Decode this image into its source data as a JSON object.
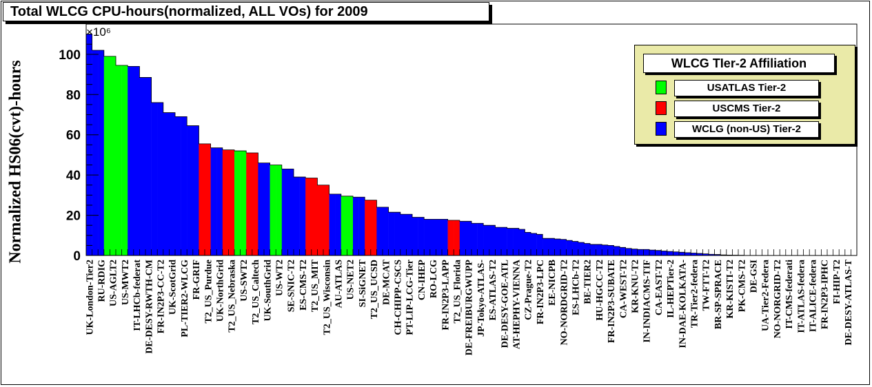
{
  "chart_data": {
    "type": "bar",
    "title": "Total WLCG CPU-hours(normalized, ALL VOs) for 2009",
    "ylabel": "Normalized HS06(cvt)-hours",
    "y_multiplier": "×10⁶",
    "ylim": [
      0,
      115
    ],
    "yticks": [
      0,
      20,
      40,
      60,
      80,
      100
    ],
    "grid": false,
    "legend": {
      "title": "WLCG TIer-2 Affiliation",
      "placement": "top-right",
      "entries": [
        {
          "name": "USATLAS Tier-2",
          "color": "#00ff00"
        },
        {
          "name": "USCMS Tier-2",
          "color": "#ff0000"
        },
        {
          "name": "WCLG (non-US) Tier-2",
          "color": "#0000ff"
        }
      ]
    },
    "colors": {
      "atlas": "#00ff00",
      "cms": "#ff0000",
      "other": "#0000ff"
    },
    "label_every": 2,
    "bars": [
      {
        "name": "UK-London-Tier2",
        "value": 110,
        "group": "other"
      },
      {
        "name": "",
        "value": 102,
        "group": "other"
      },
      {
        "name": "RU-RDIG",
        "value": 102,
        "group": "other"
      },
      {
        "name": "",
        "value": 99,
        "group": "atlas"
      },
      {
        "name": "US-AGLT2",
        "value": 99,
        "group": "atlas"
      },
      {
        "name": "",
        "value": 94.5,
        "group": "atlas"
      },
      {
        "name": "US-MWT2",
        "value": 94.5,
        "group": "atlas"
      },
      {
        "name": "",
        "value": 94,
        "group": "other"
      },
      {
        "name": "IT-LHCb-federat",
        "value": 94,
        "group": "other"
      },
      {
        "name": "",
        "value": 88.5,
        "group": "other"
      },
      {
        "name": "DE-DESY-RWTH-CM",
        "value": 88.5,
        "group": "other"
      },
      {
        "name": "",
        "value": 76,
        "group": "other"
      },
      {
        "name": "FR-IN2P3-CC-T2",
        "value": 76,
        "group": "other"
      },
      {
        "name": "",
        "value": 71,
        "group": "other"
      },
      {
        "name": "UK-ScotGrid",
        "value": 71,
        "group": "other"
      },
      {
        "name": "",
        "value": 69,
        "group": "other"
      },
      {
        "name": "PL-TIER2-WLCG",
        "value": 69,
        "group": "other"
      },
      {
        "name": "",
        "value": 64.5,
        "group": "other"
      },
      {
        "name": "FR-GRIF",
        "value": 64.5,
        "group": "other"
      },
      {
        "name": "",
        "value": 55.5,
        "group": "cms"
      },
      {
        "name": "T2_US_Purdue",
        "value": 55.5,
        "group": "cms"
      },
      {
        "name": "",
        "value": 53.5,
        "group": "other"
      },
      {
        "name": "UK-NorthGrid",
        "value": 53.5,
        "group": "other"
      },
      {
        "name": "",
        "value": 52.5,
        "group": "cms"
      },
      {
        "name": "T2_US_Nebraska",
        "value": 52.5,
        "group": "cms"
      },
      {
        "name": "",
        "value": 52,
        "group": "atlas"
      },
      {
        "name": "US-SWT2",
        "value": 52,
        "group": "atlas"
      },
      {
        "name": "",
        "value": 51,
        "group": "cms"
      },
      {
        "name": "T2_US_Caltech",
        "value": 51,
        "group": "cms"
      },
      {
        "name": "",
        "value": 46,
        "group": "other"
      },
      {
        "name": "UK-SouthGrid",
        "value": 46,
        "group": "other"
      },
      {
        "name": "",
        "value": 45,
        "group": "atlas"
      },
      {
        "name": "US-WT2",
        "value": 45,
        "group": "atlas"
      },
      {
        "name": "",
        "value": 43,
        "group": "other"
      },
      {
        "name": "SE-SNIC-T2",
        "value": 43,
        "group": "other"
      },
      {
        "name": "",
        "value": 39,
        "group": "other"
      },
      {
        "name": "ES-CMS-T2",
        "value": 39,
        "group": "other"
      },
      {
        "name": "",
        "value": 38.5,
        "group": "cms"
      },
      {
        "name": "T2_US_MIT",
        "value": 38.5,
        "group": "cms"
      },
      {
        "name": "",
        "value": 35,
        "group": "cms"
      },
      {
        "name": "T2_US_Wisconsin",
        "value": 35,
        "group": "cms"
      },
      {
        "name": "",
        "value": 30.5,
        "group": "other"
      },
      {
        "name": "AU-ATLAS",
        "value": 30.5,
        "group": "other"
      },
      {
        "name": "",
        "value": 29.5,
        "group": "atlas"
      },
      {
        "name": "US-NET2",
        "value": 29.5,
        "group": "atlas"
      },
      {
        "name": "",
        "value": 29,
        "group": "other"
      },
      {
        "name": "SI-SiGNET",
        "value": 29,
        "group": "other"
      },
      {
        "name": "",
        "value": 27.5,
        "group": "cms"
      },
      {
        "name": "T2_US_UCSD",
        "value": 27.5,
        "group": "cms"
      },
      {
        "name": "",
        "value": 24,
        "group": "other"
      },
      {
        "name": "DE-MCAT",
        "value": 24,
        "group": "other"
      },
      {
        "name": "",
        "value": 21.5,
        "group": "other"
      },
      {
        "name": "CH-CHIPP-CSCS",
        "value": 21.5,
        "group": "other"
      },
      {
        "name": "",
        "value": 20.5,
        "group": "other"
      },
      {
        "name": "PT-LIP-LCG-Tier",
        "value": 20.5,
        "group": "other"
      },
      {
        "name": "",
        "value": 19,
        "group": "other"
      },
      {
        "name": "CN-IHEP",
        "value": 19,
        "group": "other"
      },
      {
        "name": "",
        "value": 18,
        "group": "other"
      },
      {
        "name": "RO-LCG",
        "value": 18,
        "group": "other"
      },
      {
        "name": "",
        "value": 18,
        "group": "other"
      },
      {
        "name": "FR-IN2P3-LAPP",
        "value": 18,
        "group": "other"
      },
      {
        "name": "",
        "value": 17.5,
        "group": "cms"
      },
      {
        "name": "T2_US_Florida",
        "value": 17.5,
        "group": "cms"
      },
      {
        "name": "",
        "value": 17,
        "group": "other"
      },
      {
        "name": "DE-FREIBURGWUPP",
        "value": 17,
        "group": "other"
      },
      {
        "name": "",
        "value": 16,
        "group": "other"
      },
      {
        "name": "JP-Tokyo-ATLAS-",
        "value": 16,
        "group": "other"
      },
      {
        "name": "",
        "value": 15,
        "group": "other"
      },
      {
        "name": "ES-ATLAS-T2",
        "value": 15,
        "group": "other"
      },
      {
        "name": "",
        "value": 14,
        "group": "other"
      },
      {
        "name": "DE-DESY-GOE-ATL",
        "value": 14,
        "group": "other"
      },
      {
        "name": "",
        "value": 13.5,
        "group": "other"
      },
      {
        "name": "AT-HEPHY-VIENNA",
        "value": 13.5,
        "group": "other"
      },
      {
        "name": "",
        "value": 13,
        "group": "other"
      },
      {
        "name": "CZ-Prague-T2",
        "value": 11.5,
        "group": "other"
      },
      {
        "name": "",
        "value": 11,
        "group": "other"
      },
      {
        "name": "FR-IN2P3-LPC",
        "value": 10.5,
        "group": "other"
      },
      {
        "name": "",
        "value": 8.5,
        "group": "other"
      },
      {
        "name": "EE-NICPB",
        "value": 8.5,
        "group": "other"
      },
      {
        "name": "",
        "value": 8.2,
        "group": "other"
      },
      {
        "name": "NO-NORDGRID-T2",
        "value": 8,
        "group": "other"
      },
      {
        "name": "",
        "value": 7.5,
        "group": "other"
      },
      {
        "name": "ES-LHCb-T2",
        "value": 7,
        "group": "other"
      },
      {
        "name": "",
        "value": 6.5,
        "group": "other"
      },
      {
        "name": "BE-TIER2",
        "value": 6,
        "group": "other"
      },
      {
        "name": "",
        "value": 5.5,
        "group": "other"
      },
      {
        "name": "HU-HGCC-T2",
        "value": 5.5,
        "group": "other"
      },
      {
        "name": "",
        "value": 5.2,
        "group": "other"
      },
      {
        "name": "FR-IN2P3-SUBATE",
        "value": 5,
        "group": "other"
      },
      {
        "name": "",
        "value": 4.5,
        "group": "other"
      },
      {
        "name": "CA-WEST-T2",
        "value": 4,
        "group": "other"
      },
      {
        "name": "",
        "value": 3.5,
        "group": "other"
      },
      {
        "name": "KR-KNU-T2",
        "value": 3.2,
        "group": "other"
      },
      {
        "name": "",
        "value": 3,
        "group": "other"
      },
      {
        "name": "IN-INDIACMS-TIF",
        "value": 3,
        "group": "other"
      },
      {
        "name": "",
        "value": 2.7,
        "group": "other"
      },
      {
        "name": "CA-EAST-T2",
        "value": 2.5,
        "group": "other"
      },
      {
        "name": "",
        "value": 2.2,
        "group": "other"
      },
      {
        "name": "IL-HEPTier-2",
        "value": 2,
        "group": "other"
      },
      {
        "name": "",
        "value": 1.8,
        "group": "other"
      },
      {
        "name": "IN-DAE-KOLKATA-",
        "value": 1.6,
        "group": "other"
      },
      {
        "name": "",
        "value": 1.4,
        "group": "other"
      },
      {
        "name": "TR-Tier2-federa",
        "value": 1.2,
        "group": "other"
      },
      {
        "name": "",
        "value": 1,
        "group": "other"
      },
      {
        "name": "TW-FTT-T2",
        "value": 0.8,
        "group": "other"
      },
      {
        "name": "",
        "value": 0.6,
        "group": "other"
      },
      {
        "name": "BR-SP-SPRACE",
        "value": 0.5,
        "group": "other"
      },
      {
        "name": "",
        "value": 0.3,
        "group": "other"
      },
      {
        "name": "KR-KISTI-T2",
        "value": 0.2,
        "group": "other"
      },
      {
        "name": "",
        "value": 0.15,
        "group": "other"
      },
      {
        "name": "PK-CMS-T2",
        "value": 0.1,
        "group": "other"
      },
      {
        "name": "",
        "value": 0.05,
        "group": "other"
      },
      {
        "name": "DE-GSI",
        "value": 0.05,
        "group": "other"
      },
      {
        "name": "",
        "value": 0,
        "group": "other"
      },
      {
        "name": "UA-Tier2-Federa",
        "value": 0,
        "group": "other"
      },
      {
        "name": "",
        "value": 0,
        "group": "other"
      },
      {
        "name": "NO-NORGRID-T2",
        "value": 0,
        "group": "other"
      },
      {
        "name": "",
        "value": 0,
        "group": "other"
      },
      {
        "name": "IT-CMS-federati",
        "value": 0,
        "group": "other"
      },
      {
        "name": "",
        "value": 0,
        "group": "other"
      },
      {
        "name": "IT-ATLAS-federa",
        "value": 0,
        "group": "other"
      },
      {
        "name": "",
        "value": 0,
        "group": "other"
      },
      {
        "name": "IT-ALICE-federa",
        "value": 0,
        "group": "other"
      },
      {
        "name": "",
        "value": 0,
        "group": "other"
      },
      {
        "name": "FR-IN2P3-IPHC",
        "value": 0,
        "group": "other"
      },
      {
        "name": "",
        "value": 0,
        "group": "other"
      },
      {
        "name": "FI-HIP-T2",
        "value": 0,
        "group": "other"
      },
      {
        "name": "",
        "value": 0,
        "group": "other"
      },
      {
        "name": "DE-DESY-ATLAS-T",
        "value": 0,
        "group": "other"
      },
      {
        "name": "",
        "value": 0,
        "group": "other"
      }
    ]
  }
}
